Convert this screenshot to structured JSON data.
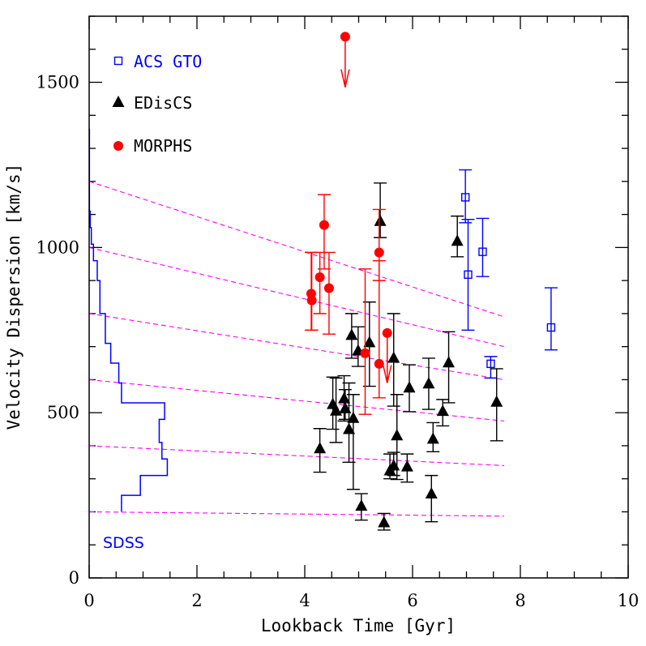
{
  "chart_data": {
    "type": "scatter",
    "xlabel": "Lookback Time [Gyr]",
    "ylabel": "Velocity Dispersion [km/s]",
    "xlim": [
      0,
      10
    ],
    "ylim": [
      0,
      1700
    ],
    "x_ticks": [
      0,
      2,
      4,
      6,
      8,
      10
    ],
    "y_ticks": [
      0,
      500,
      1000,
      1500
    ],
    "grid": false,
    "legend_position": "top-left",
    "colors": {
      "acs": "#0000ff",
      "ediscs": "#000000",
      "morphs": "#ff0000",
      "sdss": "#0000ff",
      "model": "#ff00ff"
    },
    "series": [
      {
        "name": "ACS GTO",
        "marker": "open-square",
        "points": [
          {
            "x": 6.98,
            "y": 1152,
            "lo": 1075,
            "hi": 1235
          },
          {
            "x": 7.03,
            "y": 918,
            "lo": 750,
            "hi": 1085
          },
          {
            "x": 7.3,
            "y": 987,
            "lo": 912,
            "hi": 1088
          },
          {
            "x": 7.45,
            "y": 648,
            "lo": 605,
            "hi": 670
          },
          {
            "x": 8.57,
            "y": 758,
            "lo": 690,
            "hi": 878
          }
        ]
      },
      {
        "name": "EDisCS",
        "marker": "filled-triangle",
        "points": [
          {
            "x": 4.28,
            "y": 392,
            "lo": 320,
            "hi": 452
          },
          {
            "x": 4.52,
            "y": 526,
            "lo": 450,
            "hi": 608
          },
          {
            "x": 4.58,
            "y": 506,
            "lo": 410,
            "hi": 605
          },
          {
            "x": 4.73,
            "y": 543,
            "lo": 475,
            "hi": 612
          },
          {
            "x": 4.75,
            "y": 513,
            "lo": 480,
            "hi": 570
          },
          {
            "x": 4.82,
            "y": 450,
            "lo": 350,
            "hi": 590
          },
          {
            "x": 4.87,
            "y": 735,
            "lo": 665,
            "hi": 800
          },
          {
            "x": 4.9,
            "y": 484,
            "lo": 268,
            "hi": 555
          },
          {
            "x": 4.99,
            "y": 688,
            "lo": 640,
            "hi": 760
          },
          {
            "x": 5.05,
            "y": 218,
            "lo": 175,
            "hi": 255
          },
          {
            "x": 5.2,
            "y": 713,
            "lo": 580,
            "hi": 835
          },
          {
            "x": 5.4,
            "y": 1080,
            "lo": 1030,
            "hi": 1195
          },
          {
            "x": 5.47,
            "y": 168,
            "lo": 145,
            "hi": 195
          },
          {
            "x": 5.58,
            "y": 325,
            "lo": 300,
            "hi": 375
          },
          {
            "x": 5.65,
            "y": 340,
            "lo": 310,
            "hi": 380
          },
          {
            "x": 5.65,
            "y": 666,
            "lo": 520,
            "hi": 800
          },
          {
            "x": 5.71,
            "y": 431,
            "lo": 298,
            "hi": 555
          },
          {
            "x": 5.9,
            "y": 337,
            "lo": 290,
            "hi": 375
          },
          {
            "x": 5.94,
            "y": 576,
            "lo": 503,
            "hi": 645
          },
          {
            "x": 6.3,
            "y": 588,
            "lo": 510,
            "hi": 665
          },
          {
            "x": 6.35,
            "y": 255,
            "lo": 170,
            "hi": 310
          },
          {
            "x": 6.38,
            "y": 421,
            "lo": 382,
            "hi": 470
          },
          {
            "x": 6.56,
            "y": 505,
            "lo": 460,
            "hi": 540
          },
          {
            "x": 6.67,
            "y": 652,
            "lo": 530,
            "hi": 745
          },
          {
            "x": 6.83,
            "y": 1020,
            "lo": 972,
            "hi": 1095
          },
          {
            "x": 7.56,
            "y": 533,
            "lo": 415,
            "hi": 633
          }
        ]
      },
      {
        "name": "MORPHS",
        "marker": "filled-circle",
        "points": [
          {
            "x": 4.12,
            "y": 860,
            "lo": 750,
            "hi": 985
          },
          {
            "x": 4.13,
            "y": 840,
            "lo": 750,
            "hi": 985
          },
          {
            "x": 4.28,
            "y": 910,
            "lo": 800,
            "hi": 985
          },
          {
            "x": 4.36,
            "y": 1068,
            "lo": 935,
            "hi": 1160
          },
          {
            "x": 4.45,
            "y": 877,
            "lo": 738,
            "hi": 985
          },
          {
            "x": 5.12,
            "y": 680,
            "lo": 495,
            "hi": 935
          },
          {
            "x": 5.38,
            "y": 985,
            "lo": 900,
            "hi": 1115
          },
          {
            "x": 5.38,
            "y": 648,
            "lo": 545,
            "hi": 960
          },
          {
            "x": 5.53,
            "y": 741,
            "upper_limit": true,
            "arrow_to": 590
          },
          {
            "x": 4.75,
            "y": 1638,
            "upper_limit": true,
            "arrow_to": 1485
          }
        ]
      }
    ],
    "sdss_histogram": {
      "label": "SDSS",
      "steps": [
        {
          "y0": 200,
          "y1": 250,
          "x": 0.6
        },
        {
          "y0": 250,
          "y1": 310,
          "x": 0.95
        },
        {
          "y0": 310,
          "y1": 360,
          "x": 1.45
        },
        {
          "y0": 360,
          "y1": 410,
          "x": 1.35
        },
        {
          "y0": 410,
          "y1": 480,
          "x": 1.3
        },
        {
          "y0": 480,
          "y1": 530,
          "x": 1.4
        },
        {
          "y0": 530,
          "y1": 590,
          "x": 0.6
        },
        {
          "y0": 590,
          "y1": 650,
          "x": 0.55
        },
        {
          "y0": 650,
          "y1": 710,
          "x": 0.4
        },
        {
          "y0": 710,
          "y1": 800,
          "x": 0.3
        },
        {
          "y0": 800,
          "y1": 900,
          "x": 0.2
        },
        {
          "y0": 900,
          "y1": 960,
          "x": 0.15
        },
        {
          "y0": 960,
          "y1": 1010,
          "x": 0.08
        },
        {
          "y0": 1010,
          "y1": 1060,
          "x": 0.04
        },
        {
          "y0": 1060,
          "y1": 1110,
          "x": 0.02
        },
        {
          "y0": 1110,
          "y1": 1360,
          "x": 0.005
        }
      ]
    },
    "model_tracks": [
      {
        "y_start": 1200,
        "y_end": 790
      },
      {
        "y_start": 1000,
        "y_end": 700
      },
      {
        "y_start": 800,
        "y_end": 600
      },
      {
        "y_start": 600,
        "y_end": 475
      },
      {
        "y_start": 400,
        "y_end": 340
      },
      {
        "y_start": 200,
        "y_end": 187
      }
    ],
    "model_x_range": [
      0,
      7.7
    ]
  }
}
